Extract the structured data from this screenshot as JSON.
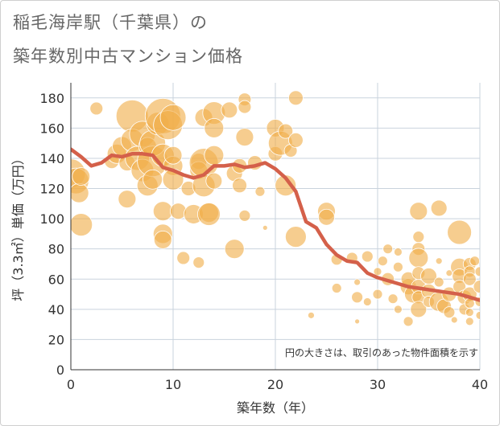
{
  "title_line1": "稲毛海岸駅（千葉県）の",
  "title_line2": "築年数別中古マンション価格",
  "chart_data": {
    "type": "scatter",
    "xlabel": "築年数（年）",
    "ylabel": "坪（3.3㎡）単価（万円）",
    "xlim": [
      0,
      40
    ],
    "ylim": [
      0,
      190
    ],
    "xticks": [
      0,
      10,
      20,
      30,
      40
    ],
    "yticks": [
      0,
      20,
      40,
      60,
      80,
      100,
      120,
      140,
      160,
      180
    ],
    "grid": true,
    "note": "円の大きさは、取引のあった物件面積を示す",
    "bubble_color": "#f0ae4a",
    "line_color": "#d4604a",
    "trend_line": {
      "x": [
        0,
        1,
        2,
        3,
        4,
        5,
        6,
        7,
        8,
        9,
        10,
        11,
        12,
        13,
        14,
        15,
        16,
        17,
        18,
        19,
        20,
        21,
        22,
        23,
        24,
        25,
        26,
        27,
        28,
        29,
        30,
        31,
        32,
        33,
        34,
        35,
        36,
        37,
        38,
        39,
        40
      ],
      "y": [
        146,
        141,
        135,
        137,
        142,
        141,
        143,
        143,
        142,
        134,
        132,
        129,
        127,
        129,
        135,
        135,
        136,
        134,
        135,
        137,
        133,
        127,
        118,
        98,
        94,
        83,
        76,
        72,
        71,
        64,
        61,
        59,
        57,
        55,
        54,
        53,
        52,
        51,
        50,
        48,
        46
      ]
    },
    "bubbles": [
      {
        "x": 0,
        "y": 130,
        "s": 18
      },
      {
        "x": 0.5,
        "y": 125,
        "s": 16
      },
      {
        "x": 1,
        "y": 96,
        "s": 14
      },
      {
        "x": 0.8,
        "y": 117,
        "s": 12
      },
      {
        "x": 1,
        "y": 128,
        "s": 11
      },
      {
        "x": 2.5,
        "y": 173,
        "s": 8
      },
      {
        "x": 4,
        "y": 138,
        "s": 9
      },
      {
        "x": 4.5,
        "y": 143,
        "s": 12
      },
      {
        "x": 5,
        "y": 148,
        "s": 12
      },
      {
        "x": 5.5,
        "y": 137,
        "s": 10
      },
      {
        "x": 5.5,
        "y": 113,
        "s": 11
      },
      {
        "x": 6,
        "y": 168,
        "s": 20
      },
      {
        "x": 6,
        "y": 152,
        "s": 14
      },
      {
        "x": 6.5,
        "y": 140,
        "s": 15
      },
      {
        "x": 7,
        "y": 132,
        "s": 14
      },
      {
        "x": 7,
        "y": 156,
        "s": 16
      },
      {
        "x": 7.5,
        "y": 122,
        "s": 13
      },
      {
        "x": 7.5,
        "y": 148,
        "s": 11
      },
      {
        "x": 8,
        "y": 138,
        "s": 19
      },
      {
        "x": 8,
        "y": 150,
        "s": 16
      },
      {
        "x": 8,
        "y": 126,
        "s": 12
      },
      {
        "x": 8.5,
        "y": 163,
        "s": 14
      },
      {
        "x": 9,
        "y": 168,
        "s": 22
      },
      {
        "x": 9,
        "y": 142,
        "s": 14
      },
      {
        "x": 9,
        "y": 105,
        "s": 12
      },
      {
        "x": 9,
        "y": 90,
        "s": 12
      },
      {
        "x": 9,
        "y": 86,
        "s": 11
      },
      {
        "x": 9.5,
        "y": 162,
        "s": 18
      },
      {
        "x": 10,
        "y": 167,
        "s": 16
      },
      {
        "x": 10,
        "y": 135,
        "s": 12
      },
      {
        "x": 10,
        "y": 142,
        "s": 11
      },
      {
        "x": 10,
        "y": 126,
        "s": 13
      },
      {
        "x": 10.5,
        "y": 105,
        "s": 10
      },
      {
        "x": 11,
        "y": 74,
        "s": 8
      },
      {
        "x": 11.5,
        "y": 120,
        "s": 9
      },
      {
        "x": 12,
        "y": 103,
        "s": 12
      },
      {
        "x": 12.5,
        "y": 138,
        "s": 10
      },
      {
        "x": 12.5,
        "y": 132,
        "s": 11
      },
      {
        "x": 13,
        "y": 137,
        "s": 18
      },
      {
        "x": 13,
        "y": 122,
        "s": 14
      },
      {
        "x": 13,
        "y": 167,
        "s": 11
      },
      {
        "x": 13.5,
        "y": 104,
        "s": 12
      },
      {
        "x": 13.5,
        "y": 103,
        "s": 14
      },
      {
        "x": 14,
        "y": 170,
        "s": 14
      },
      {
        "x": 14,
        "y": 160,
        "s": 12
      },
      {
        "x": 14,
        "y": 142,
        "s": 12
      },
      {
        "x": 14,
        "y": 125,
        "s": 10
      },
      {
        "x": 12.5,
        "y": 71,
        "s": 7
      },
      {
        "x": 15.5,
        "y": 172,
        "s": 10
      },
      {
        "x": 16,
        "y": 130,
        "s": 10
      },
      {
        "x": 16,
        "y": 80,
        "s": 12
      },
      {
        "x": 16.5,
        "y": 135,
        "s": 9
      },
      {
        "x": 16.5,
        "y": 122,
        "s": 9
      },
      {
        "x": 17,
        "y": 179,
        "s": 8
      },
      {
        "x": 17,
        "y": 174,
        "s": 8
      },
      {
        "x": 17,
        "y": 154,
        "s": 11
      },
      {
        "x": 17,
        "y": 102,
        "s": 7
      },
      {
        "x": 18,
        "y": 137,
        "s": 9
      },
      {
        "x": 18.5,
        "y": 118,
        "s": 6
      },
      {
        "x": 19,
        "y": 94,
        "s": 3
      },
      {
        "x": 20,
        "y": 160,
        "s": 11
      },
      {
        "x": 20,
        "y": 143,
        "s": 9
      },
      {
        "x": 20.5,
        "y": 150,
        "s": 15
      },
      {
        "x": 21,
        "y": 158,
        "s": 9
      },
      {
        "x": 21,
        "y": 122,
        "s": 13
      },
      {
        "x": 21.5,
        "y": 145,
        "s": 8
      },
      {
        "x": 22,
        "y": 180,
        "s": 9
      },
      {
        "x": 22,
        "y": 152,
        "s": 9
      },
      {
        "x": 22,
        "y": 88,
        "s": 13
      },
      {
        "x": 23.5,
        "y": 36,
        "s": 4
      },
      {
        "x": 25,
        "y": 105,
        "s": 11
      },
      {
        "x": 25,
        "y": 101,
        "s": 10
      },
      {
        "x": 26,
        "y": 73,
        "s": 7
      },
      {
        "x": 26,
        "y": 54,
        "s": 6
      },
      {
        "x": 27.5,
        "y": 74,
        "s": 7
      },
      {
        "x": 28,
        "y": 58,
        "s": 4
      },
      {
        "x": 28,
        "y": 48,
        "s": 7
      },
      {
        "x": 28,
        "y": 32,
        "s": 3
      },
      {
        "x": 29,
        "y": 75,
        "s": 7
      },
      {
        "x": 29,
        "y": 45,
        "s": 5
      },
      {
        "x": 30,
        "y": 50,
        "s": 6
      },
      {
        "x": 30,
        "y": 65,
        "s": 5
      },
      {
        "x": 30.5,
        "y": 72,
        "s": 6
      },
      {
        "x": 31,
        "y": 80,
        "s": 6
      },
      {
        "x": 31,
        "y": 60,
        "s": 8
      },
      {
        "x": 31.5,
        "y": 47,
        "s": 6
      },
      {
        "x": 32,
        "y": 78,
        "s": 5
      },
      {
        "x": 32,
        "y": 68,
        "s": 6
      },
      {
        "x": 32,
        "y": 40,
        "s": 5
      },
      {
        "x": 33,
        "y": 55,
        "s": 10
      },
      {
        "x": 33,
        "y": 60,
        "s": 9
      },
      {
        "x": 33.5,
        "y": 50,
        "s": 11
      },
      {
        "x": 33,
        "y": 32,
        "s": 6
      },
      {
        "x": 34,
        "y": 105,
        "s": 11
      },
      {
        "x": 34,
        "y": 88,
        "s": 7
      },
      {
        "x": 34,
        "y": 80,
        "s": 8
      },
      {
        "x": 34,
        "y": 74,
        "s": 12
      },
      {
        "x": 34,
        "y": 64,
        "s": 8
      },
      {
        "x": 34,
        "y": 55,
        "s": 9
      },
      {
        "x": 34,
        "y": 48,
        "s": 8
      },
      {
        "x": 34,
        "y": 40,
        "s": 10
      },
      {
        "x": 35,
        "y": 62,
        "s": 10
      },
      {
        "x": 35,
        "y": 52,
        "s": 9
      },
      {
        "x": 35,
        "y": 45,
        "s": 7
      },
      {
        "x": 36,
        "y": 107,
        "s": 10
      },
      {
        "x": 36,
        "y": 72,
        "s": 4
      },
      {
        "x": 36,
        "y": 58,
        "s": 6
      },
      {
        "x": 36,
        "y": 45,
        "s": 12
      },
      {
        "x": 36.5,
        "y": 42,
        "s": 9
      },
      {
        "x": 37,
        "y": 50,
        "s": 9
      },
      {
        "x": 37,
        "y": 38,
        "s": 7
      },
      {
        "x": 38,
        "y": 91,
        "s": 15
      },
      {
        "x": 38,
        "y": 68,
        "s": 11
      },
      {
        "x": 38,
        "y": 62,
        "s": 9
      },
      {
        "x": 38,
        "y": 55,
        "s": 8
      },
      {
        "x": 38.5,
        "y": 48,
        "s": 9
      },
      {
        "x": 38.5,
        "y": 40,
        "s": 7
      },
      {
        "x": 39,
        "y": 70,
        "s": 8
      },
      {
        "x": 39,
        "y": 65,
        "s": 7
      },
      {
        "x": 39,
        "y": 60,
        "s": 8
      },
      {
        "x": 39,
        "y": 50,
        "s": 9
      },
      {
        "x": 39,
        "y": 44,
        "s": 6
      },
      {
        "x": 39,
        "y": 38,
        "s": 5
      },
      {
        "x": 39,
        "y": 32,
        "s": 5
      },
      {
        "x": 39.5,
        "y": 72,
        "s": 6
      },
      {
        "x": 40,
        "y": 55,
        "s": 8
      },
      {
        "x": 40,
        "y": 65,
        "s": 6
      },
      {
        "x": 40,
        "y": 45,
        "s": 6
      },
      {
        "x": 40,
        "y": 36,
        "s": 5
      },
      {
        "x": 37.5,
        "y": 33,
        "s": 4
      },
      {
        "x": 37,
        "y": 64,
        "s": 4
      }
    ]
  }
}
